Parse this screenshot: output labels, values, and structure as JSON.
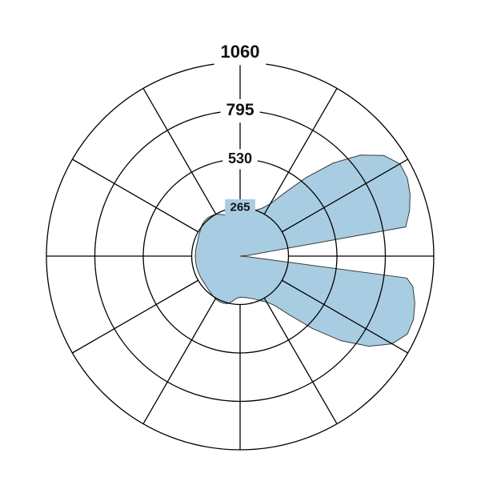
{
  "chart_data": {
    "type": "polar-area",
    "title": "",
    "radial_ticks": [
      {
        "value": 265,
        "label": "265"
      },
      {
        "value": 530,
        "label": "530"
      },
      {
        "value": 795,
        "label": "795"
      },
      {
        "value": 1060,
        "label": "1060"
      }
    ],
    "radial_range": [
      0,
      1060
    ],
    "angular_step_deg": 30,
    "grid": true,
    "fill_color": "#a8cde3",
    "series": [
      {
        "angle_deg": [
          0,
          5,
          10,
          15,
          20,
          25,
          30,
          35,
          40,
          45,
          50,
          55,
          60,
          65,
          70,
          75,
          80,
          82.5,
          85,
          90,
          95,
          100,
          105,
          110,
          115,
          120,
          125,
          130,
          135,
          140,
          145,
          150,
          155,
          160,
          165,
          170,
          175,
          180,
          185,
          190,
          195,
          200,
          205,
          210,
          215,
          220,
          225,
          230,
          235,
          240,
          245,
          250,
          255,
          260,
          265,
          270,
          275,
          280,
          285,
          290,
          295,
          297.5,
          300,
          305,
          310,
          315,
          320,
          325,
          330,
          335,
          340,
          345,
          350,
          355,
          360
        ],
        "r": [
          225,
          227,
          232,
          240,
          252,
          270,
          290,
          330,
          420,
          560,
          720,
          860,
          960,
          1010,
          1010,
          990,
          960,
          920,
          40,
          0,
          40,
          920,
          960,
          990,
          1010,
          1010,
          960,
          860,
          720,
          560,
          420,
          330,
          290,
          270,
          252,
          240,
          232,
          227,
          225,
          227,
          232,
          240,
          252,
          265,
          270,
          274,
          274,
          270,
          263,
          256,
          251,
          247,
          245,
          245,
          245,
          245,
          245,
          245,
          245,
          245,
          245,
          245,
          245,
          245,
          247,
          251,
          256,
          263,
          270,
          274,
          274,
          270,
          252,
          232,
          225
        ]
      }
    ]
  }
}
